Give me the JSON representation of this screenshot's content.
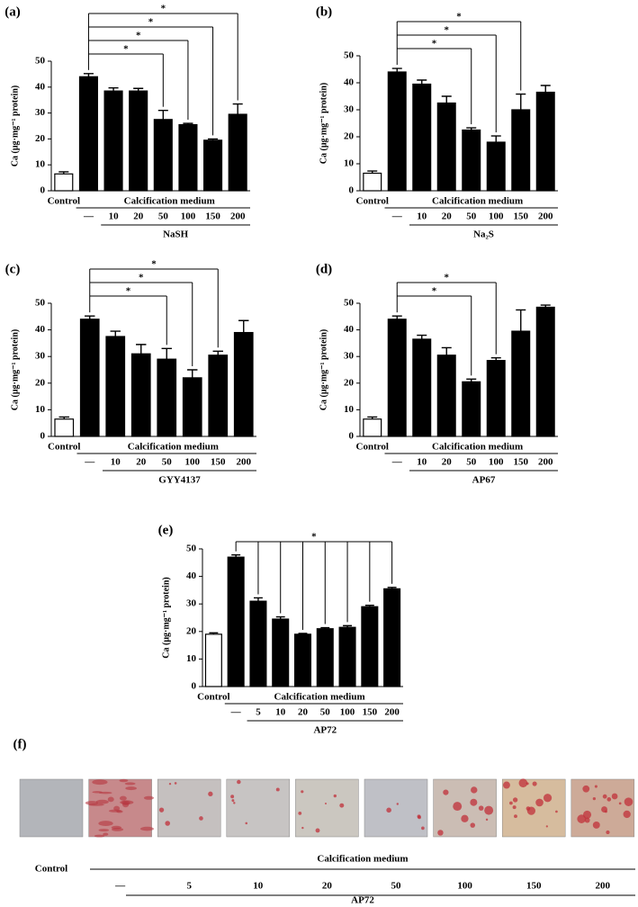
{
  "chart_data": [
    {
      "type": "bar",
      "label": "(a)",
      "ylabel": "Ca (μg·mg⁻¹ protein)",
      "categories": [
        "Control",
        "—",
        "10",
        "20",
        "50",
        "100",
        "150",
        "200"
      ],
      "values": [
        6.5,
        44,
        38.5,
        38.5,
        27.5,
        25.5,
        19.5,
        29.5
      ],
      "errors": [
        0.8,
        1.2,
        1.2,
        1,
        3.5,
        0.5,
        0.5,
        4
      ],
      "bar_colors": [
        "#ffffff",
        "#000000",
        "#000000",
        "#000000",
        "#000000",
        "#000000",
        "#000000",
        "#000000"
      ],
      "ylim": [
        0,
        50
      ],
      "yticks": [
        0,
        10,
        20,
        30,
        40,
        50
      ],
      "group_label": "Calcification medium",
      "treatment": "NaSH",
      "brackets": [
        {
          "from": "—",
          "to": [
            "50"
          ],
          "label": "*"
        },
        {
          "from": "—",
          "to": [
            "100"
          ],
          "label": "*"
        },
        {
          "from": "—",
          "to": [
            "150"
          ],
          "label": "*"
        },
        {
          "from": "—",
          "to": [
            "200"
          ],
          "label": "*"
        }
      ]
    },
    {
      "type": "bar",
      "label": "(b)",
      "ylabel": "Ca (μg·mg⁻¹ protein)",
      "categories": [
        "Control",
        "—",
        "10",
        "20",
        "50",
        "100",
        "150",
        "200"
      ],
      "values": [
        6.5,
        44,
        39.5,
        32.5,
        22.5,
        18,
        30,
        36.5
      ],
      "errors": [
        0.8,
        1.3,
        1.5,
        2.5,
        0.8,
        2.3,
        5.8,
        2.5
      ],
      "bar_colors": [
        "#ffffff",
        "#000000",
        "#000000",
        "#000000",
        "#000000",
        "#000000",
        "#000000",
        "#000000"
      ],
      "ylim": [
        0,
        50
      ],
      "yticks": [
        0,
        10,
        20,
        30,
        40,
        50
      ],
      "group_label": "Calcification medium",
      "treatment": "Na₂S",
      "brackets": [
        {
          "from": "—",
          "to": [
            "50"
          ],
          "label": "*"
        },
        {
          "from": "—",
          "to": [
            "100"
          ],
          "label": "*"
        },
        {
          "from": "—",
          "to": [
            "150"
          ],
          "label": "*"
        }
      ]
    },
    {
      "type": "bar",
      "label": "(c)",
      "ylabel": "Ca (μg·mg⁻¹ protein)",
      "categories": [
        "Control",
        "—",
        "10",
        "20",
        "50",
        "100",
        "150",
        "200"
      ],
      "values": [
        6.5,
        44,
        37.5,
        31,
        29,
        22,
        30.5,
        39
      ],
      "errors": [
        0.8,
        1.2,
        2,
        3.5,
        4,
        3,
        1.5,
        4.5
      ],
      "bar_colors": [
        "#ffffff",
        "#000000",
        "#000000",
        "#000000",
        "#000000",
        "#000000",
        "#000000",
        "#000000"
      ],
      "ylim": [
        0,
        50
      ],
      "yticks": [
        0,
        10,
        20,
        30,
        40,
        50
      ],
      "group_label": "Calcification medium",
      "treatment": "GYY4137",
      "brackets": [
        {
          "from": "—",
          "to": [
            "50"
          ],
          "label": "*"
        },
        {
          "from": "—",
          "to": [
            "100"
          ],
          "label": "*"
        },
        {
          "from": "—",
          "to": [
            "150"
          ],
          "label": "*"
        }
      ]
    },
    {
      "type": "bar",
      "label": "(d)",
      "ylabel": "Ca (μg·mg⁻¹ protein)",
      "categories": [
        "Control",
        "—",
        "10",
        "20",
        "50",
        "100",
        "150",
        "200"
      ],
      "values": [
        6.5,
        44,
        36.5,
        30.5,
        20.5,
        28.5,
        39.5,
        48.5
      ],
      "errors": [
        0.8,
        1.2,
        1.5,
        2.8,
        1,
        1,
        8,
        0.8
      ],
      "bar_colors": [
        "#ffffff",
        "#000000",
        "#000000",
        "#000000",
        "#000000",
        "#000000",
        "#000000",
        "#000000"
      ],
      "ylim": [
        0,
        50
      ],
      "yticks": [
        0,
        10,
        20,
        30,
        40,
        50
      ],
      "group_label": "Calcification medium",
      "treatment": "AP67",
      "brackets": [
        {
          "from": "—",
          "to": [
            "50"
          ],
          "label": "*"
        },
        {
          "from": "—",
          "to": [
            "100"
          ],
          "label": "*"
        }
      ]
    },
    {
      "type": "bar",
      "label": "(e)",
      "ylabel": "Ca (μg·mg⁻¹ protein)",
      "categories": [
        "Control",
        "—",
        "5",
        "10",
        "20",
        "50",
        "100",
        "150",
        "200"
      ],
      "values": [
        19,
        47,
        31,
        24.5,
        19,
        21,
        21.5,
        29,
        35.5
      ],
      "errors": [
        0.5,
        0.8,
        1.2,
        0.8,
        0.3,
        0.4,
        0.6,
        0.5,
        0.5
      ],
      "bar_colors": [
        "#ffffff",
        "#000000",
        "#000000",
        "#000000",
        "#000000",
        "#000000",
        "#000000",
        "#000000",
        "#000000"
      ],
      "ylim": [
        0,
        50
      ],
      "yticks": [
        0,
        10,
        20,
        30,
        40,
        50
      ],
      "group_label": "Calcification medium",
      "treatment": "AP72",
      "brackets": [
        {
          "from": "—",
          "to": [
            "5",
            "10",
            "20",
            "50",
            "100",
            "150",
            "200"
          ],
          "label": "*"
        }
      ]
    }
  ],
  "panel_f": {
    "label": "(f)",
    "control": "Control",
    "group_label": "Calcification medium",
    "doses": [
      "—",
      "5",
      "10",
      "20",
      "50",
      "100",
      "150",
      "200"
    ],
    "treatment": "AP72"
  }
}
